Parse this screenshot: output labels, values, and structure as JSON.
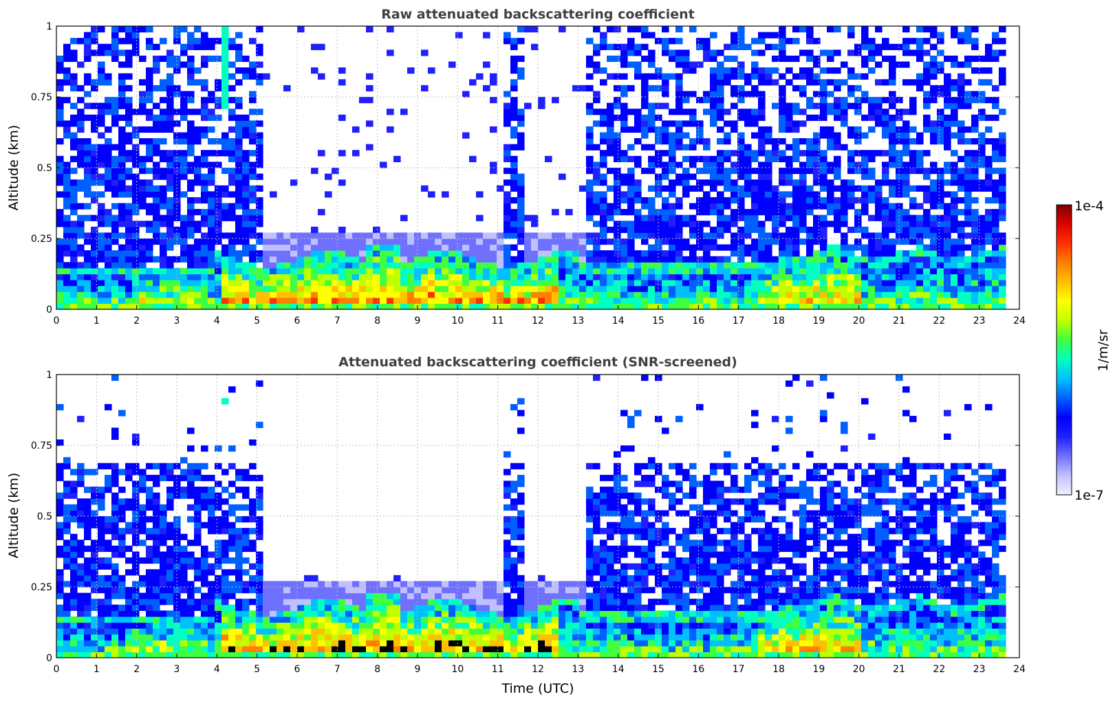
{
  "chart_data": [
    {
      "type": "heatmap",
      "title": "Raw attenuated backscattering coefficient",
      "xlabel": "",
      "ylabel": "Altitude (km)",
      "xlim": [
        0,
        24
      ],
      "ylim": [
        0,
        1
      ],
      "xticks": [
        "0",
        "1",
        "2",
        "3",
        "4",
        "5",
        "6",
        "7",
        "8",
        "9",
        "10",
        "11",
        "12",
        "13",
        "14",
        "15",
        "16",
        "17",
        "18",
        "19",
        "20",
        "21",
        "22",
        "23",
        "24"
      ],
      "yticks": [
        "0",
        "0.25",
        "0.5",
        "0.75",
        "1"
      ],
      "grid": true,
      "screened": false,
      "description_values": {
        "surface_layer_top_km": [
          0.12,
          0.2
        ],
        "aerosol_layer_peak_hours": [
          4.2,
          10.5
        ]
      }
    },
    {
      "type": "heatmap",
      "title": "Attenuated backscattering coefficient (SNR-screened)",
      "xlabel": "Time (UTC)",
      "ylabel": "Altitude (km)",
      "xlim": [
        0,
        24
      ],
      "ylim": [
        0,
        1
      ],
      "xticks": [
        "0",
        "1",
        "2",
        "3",
        "4",
        "5",
        "6",
        "7",
        "8",
        "9",
        "10",
        "11",
        "12",
        "13",
        "14",
        "15",
        "16",
        "17",
        "18",
        "19",
        "20",
        "21",
        "22",
        "23",
        "24"
      ],
      "yticks": [
        "0",
        "0.25",
        "0.5",
        "0.75",
        "1"
      ],
      "grid": true,
      "screened": true
    }
  ],
  "colorbar": {
    "label": "1/m/sr",
    "max_label": "1e-4",
    "min_label": "1e-7",
    "vmin": 1e-07,
    "vmax": 0.0001,
    "scale": "log",
    "colormap": [
      "#f0f0ff",
      "#c0c0ff",
      "#7070ff",
      "#2020ff",
      "#0000ff",
      "#0060ff",
      "#00c0ff",
      "#00ffc0",
      "#40ff40",
      "#c0ff00",
      "#ffff00",
      "#ffc000",
      "#ff8000",
      "#ff3000",
      "#e00000",
      "#800000"
    ]
  }
}
